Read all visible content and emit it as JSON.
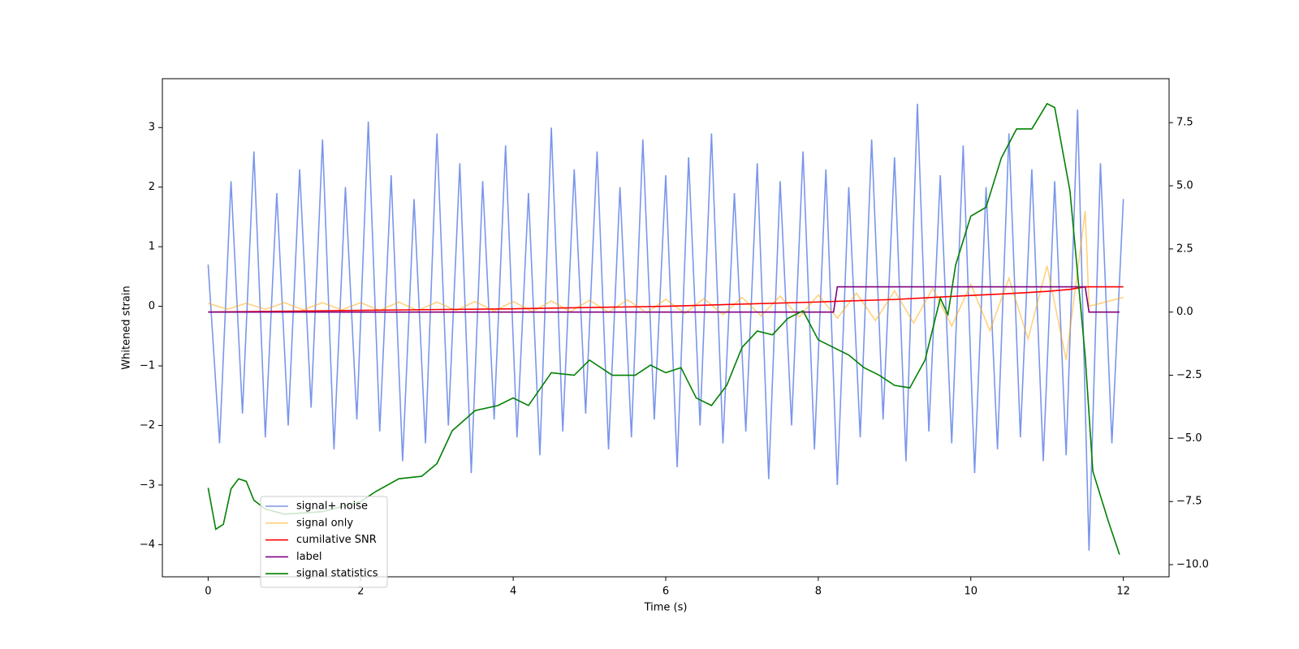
{
  "chart_data": {
    "type": "line",
    "xlabel": "Time (s)",
    "ylabel": "Whitened strain",
    "xlim": [
      -0.6,
      12.6
    ],
    "ylim": [
      -4.54,
      3.82
    ],
    "y2lim": [
      -10.48,
      9.24
    ],
    "xticks": [
      0,
      2,
      4,
      6,
      8,
      10,
      12
    ],
    "yticks": [
      {
        "value": -4,
        "label": "−4"
      },
      {
        "value": -3,
        "label": "−3"
      },
      {
        "value": -2,
        "label": "−2"
      },
      {
        "value": -1,
        "label": "−1"
      },
      0,
      1,
      2,
      3
    ],
    "y2ticks": [
      {
        "value": -10,
        "label": "−10.0"
      },
      {
        "value": -7.5,
        "label": "−7.5"
      },
      {
        "value": -5,
        "label": "−5.0"
      },
      {
        "value": -2.5,
        "label": "−2.5"
      },
      {
        "value": 0,
        "label": "0.0"
      },
      {
        "value": 2.5,
        "label": "2.5"
      },
      {
        "value": 5,
        "label": "5.0"
      },
      {
        "value": 7.5,
        "label": "7.5"
      }
    ],
    "series": [
      {
        "name": "signal+ noise",
        "color": "#4169e1",
        "alpha": 0.7,
        "x": [
          0,
          0.15,
          0.3,
          0.45,
          0.6,
          0.75,
          0.9,
          1.05,
          1.2,
          1.35,
          1.5,
          1.65,
          1.8,
          1.95,
          2.1,
          2.25,
          2.4,
          2.55,
          2.7,
          2.85,
          3,
          3.15,
          3.3,
          3.45,
          3.6,
          3.75,
          3.9,
          4.05,
          4.2,
          4.35,
          4.5,
          4.65,
          4.8,
          4.95,
          5.1,
          5.25,
          5.4,
          5.55,
          5.7,
          5.85,
          6,
          6.15,
          6.3,
          6.45,
          6.6,
          6.75,
          6.9,
          7.05,
          7.2,
          7.35,
          7.5,
          7.65,
          7.8,
          7.95,
          8.1,
          8.25,
          8.4,
          8.55,
          8.7,
          8.85,
          9,
          9.15,
          9.3,
          9.45,
          9.6,
          9.75,
          9.9,
          10.05,
          10.2,
          10.35,
          10.5,
          10.65,
          10.8,
          10.95,
          11.1,
          11.25,
          11.4,
          11.55,
          11.7,
          11.85,
          12
        ],
        "values": [
          0.7,
          -2.3,
          2.1,
          -1.8,
          2.6,
          -2.2,
          1.9,
          -2.0,
          2.3,
          -1.7,
          2.8,
          -2.4,
          2.0,
          -1.9,
          3.1,
          -2.1,
          2.2,
          -2.6,
          1.8,
          -2.3,
          2.9,
          -2.0,
          2.4,
          -2.8,
          2.1,
          -1.9,
          2.7,
          -2.2,
          1.9,
          -2.5,
          3.0,
          -2.1,
          2.3,
          -1.8,
          2.6,
          -2.4,
          2.0,
          -2.2,
          2.8,
          -1.9,
          2.2,
          -2.7,
          2.5,
          -2.0,
          2.9,
          -2.3,
          1.9,
          -2.1,
          2.4,
          -2.9,
          2.1,
          -2.0,
          2.6,
          -2.4,
          2.3,
          -3.0,
          2.0,
          -2.2,
          2.8,
          -1.9,
          2.5,
          -2.6,
          3.4,
          -2.1,
          2.2,
          -2.3,
          2.7,
          -2.8,
          2.0,
          -2.4,
          2.9,
          -2.2,
          2.3,
          -2.6,
          2.1,
          -2.5,
          3.3,
          -4.1,
          2.4,
          -2.3,
          1.8
        ]
      },
      {
        "name": "signal only",
        "color": "#ffa500",
        "alpha": 0.5,
        "x": [
          0,
          0.25,
          0.5,
          0.75,
          1,
          1.25,
          1.5,
          1.75,
          2,
          2.25,
          2.5,
          2.75,
          3,
          3.25,
          3.5,
          3.75,
          4,
          4.25,
          4.5,
          4.75,
          5,
          5.25,
          5.5,
          5.75,
          6,
          6.25,
          6.5,
          6.75,
          7,
          7.25,
          7.5,
          7.75,
          8,
          8.25,
          8.5,
          8.75,
          9,
          9.25,
          9.5,
          9.75,
          10,
          10.25,
          10.5,
          10.75,
          11,
          11.25,
          11.5,
          11.55,
          12
        ],
        "values": [
          0.05,
          -0.05,
          0.05,
          -0.05,
          0.06,
          -0.06,
          0.06,
          -0.06,
          0.06,
          -0.07,
          0.07,
          -0.07,
          0.07,
          -0.07,
          0.08,
          -0.08,
          0.08,
          -0.09,
          0.09,
          -0.09,
          0.1,
          -0.1,
          0.11,
          -0.11,
          0.12,
          -0.12,
          0.13,
          -0.14,
          0.15,
          -0.16,
          0.17,
          -0.18,
          0.19,
          -0.2,
          0.22,
          -0.24,
          0.26,
          -0.28,
          0.3,
          -0.33,
          0.37,
          -0.41,
          0.47,
          -0.55,
          0.68,
          -0.9,
          1.6,
          0,
          0.15
        ]
      },
      {
        "name": "cumilative SNR",
        "color": "#ff0000",
        "alpha": 1,
        "axis": "y2",
        "x": [
          0,
          2,
          4,
          6,
          8,
          9,
          10,
          10.5,
          11,
          11.3,
          11.5,
          12
        ],
        "values": [
          0,
          0.07,
          0.13,
          0.23,
          0.4,
          0.5,
          0.66,
          0.73,
          0.82,
          0.9,
          1,
          1
        ]
      },
      {
        "name": "label",
        "color": "#800080",
        "alpha": 1,
        "axis": "y2",
        "x": [
          0,
          8.2,
          8.25,
          11.5,
          11.55,
          11.95
        ],
        "values": [
          0,
          0,
          1,
          1,
          0,
          0
        ]
      },
      {
        "name": "signal statistics",
        "color": "#008000",
        "alpha": 1,
        "axis": "y2",
        "x": [
          0,
          0.1,
          0.2,
          0.3,
          0.4,
          0.5,
          0.6,
          0.75,
          1,
          1.5,
          2,
          2.2,
          2.5,
          2.8,
          3,
          3.2,
          3.5,
          3.8,
          4,
          4.2,
          4.5,
          4.8,
          5,
          5.3,
          5.6,
          5.8,
          6,
          6.2,
          6.4,
          6.6,
          6.8,
          7,
          7.2,
          7.4,
          7.6,
          7.8,
          8,
          8.2,
          8.4,
          8.6,
          8.8,
          9,
          9.2,
          9.4,
          9.6,
          9.7,
          9.8,
          10,
          10.2,
          10.4,
          10.6,
          10.8,
          11,
          11.1,
          11.3,
          11.5,
          11.6,
          11.8,
          11.95
        ],
        "values": [
          -6.96,
          -8.6,
          -8.4,
          -7.0,
          -6.6,
          -6.7,
          -7.45,
          -7.8,
          -8.0,
          -7.9,
          -7.5,
          -7.1,
          -6.6,
          -6.5,
          -6.0,
          -4.7,
          -3.9,
          -3.7,
          -3.4,
          -3.7,
          -2.4,
          -2.5,
          -1.9,
          -2.5,
          -2.5,
          -2.1,
          -2.4,
          -2.2,
          -3.4,
          -3.7,
          -2.9,
          -1.4,
          -0.75,
          -0.9,
          -0.25,
          0.05,
          -1.1,
          -1.4,
          -1.7,
          -2.2,
          -2.5,
          -2.9,
          -3.0,
          -1.9,
          0.55,
          -0.1,
          1.85,
          3.8,
          4.15,
          6.1,
          7.25,
          7.25,
          8.25,
          8.1,
          4.8,
          -1.75,
          -6.3,
          -8.25,
          -9.6
        ]
      }
    ]
  }
}
